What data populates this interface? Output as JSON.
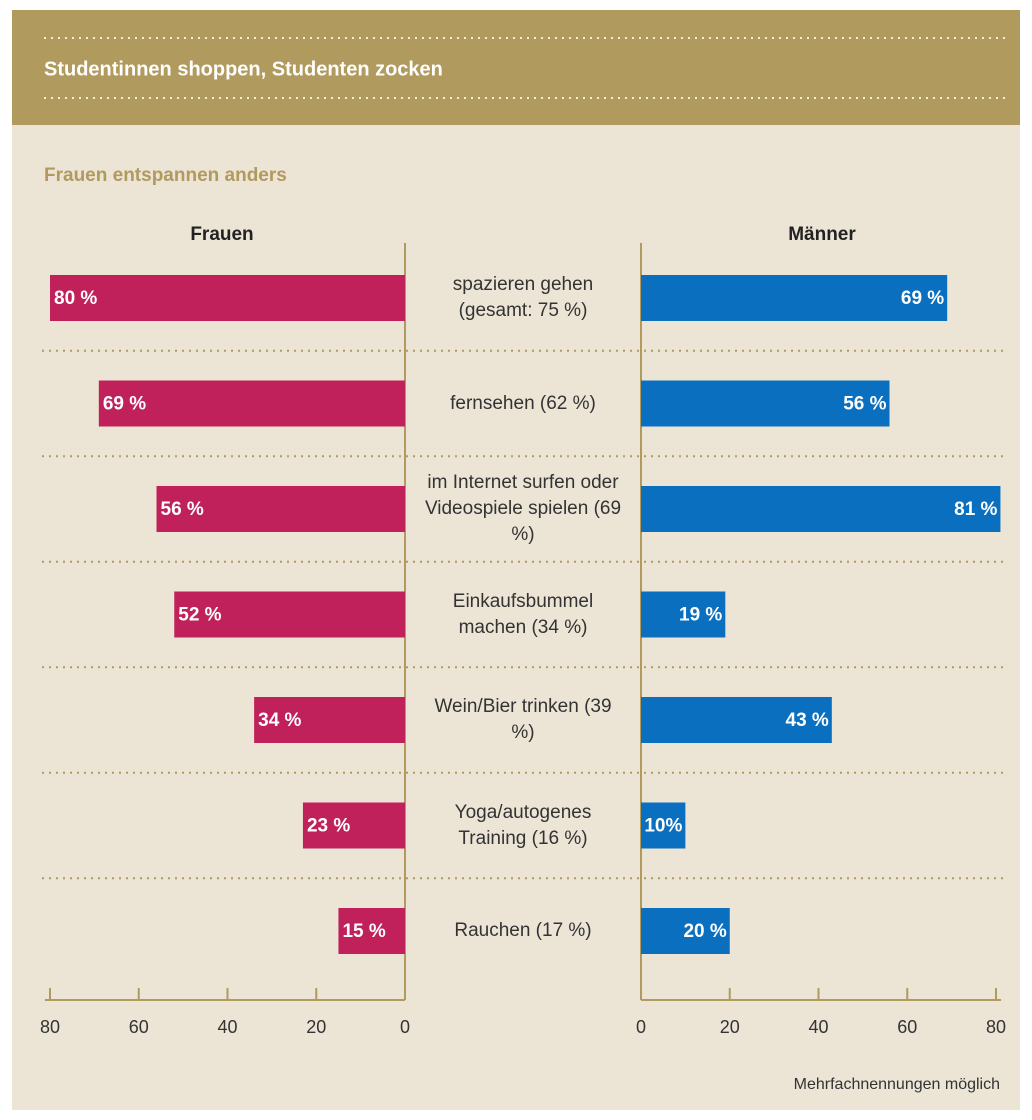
{
  "chart_data": {
    "type": "butterfly",
    "title": "Studentinnen shoppen, Studenten zocken",
    "subtitle": "Frauen entspannen anders",
    "note": "Mehrfachnennungen möglich",
    "categories": [
      "spazieren gehen (gesamt: 75 %)",
      "fernsehen (62 %)",
      "im Internet surfen oder Videospiele spielen (69 %)",
      "Einkaufsbummel machen (34 %)",
      "Wein/Bier trinken (39 %)",
      "Yoga/autogenes Training (16 %)",
      "Rauchen (17 %)"
    ],
    "series": [
      {
        "name": "Frauen",
        "color": "#c0215a",
        "values": [
          80,
          69,
          56,
          52,
          34,
          23,
          15
        ],
        "value_labels": [
          "80 %",
          "69 %",
          "56 %",
          "52 %",
          "34 %",
          "23 %",
          "15 %"
        ]
      },
      {
        "name": "Männer",
        "color": "#0a6fbf",
        "values": [
          69,
          56,
          81,
          19,
          43,
          10,
          20
        ],
        "value_labels": [
          "69 %",
          "56 %",
          "81 %",
          "19 %",
          "43 %",
          "10%",
          "20 %"
        ]
      }
    ],
    "xlim": [
      0,
      80
    ],
    "xticks": [
      0,
      20,
      40,
      60,
      80
    ]
  }
}
